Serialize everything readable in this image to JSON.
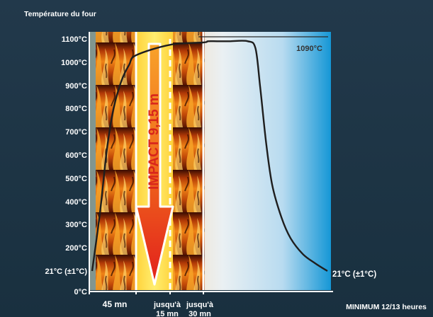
{
  "chart_data": {
    "type": "line",
    "title": "Température du four",
    "ylim": [
      0,
      1100
    ],
    "y_ticks": [
      "1100°C",
      "1000°C",
      "900°C",
      "800°C",
      "700°C",
      "600°C",
      "500°C",
      "400°C",
      "300°C",
      "200°C",
      "21°C (±1°C)",
      "0°C"
    ],
    "y_tick_values": [
      1100,
      1000,
      900,
      800,
      700,
      600,
      500,
      400,
      300,
      200,
      21,
      0
    ],
    "x_labels": [
      {
        "text": "45 mn"
      },
      {
        "text": "jusqu'à 15 mn"
      },
      {
        "text": "jusqu'à 30 mn"
      },
      {
        "text": "MINIMUM 12/13 heures"
      }
    ],
    "series": [
      {
        "points": [
          [
            0,
            21
          ],
          [
            8,
            350
          ],
          [
            15,
            620
          ],
          [
            22,
            800
          ],
          [
            30,
            920
          ],
          [
            38,
            990
          ],
          [
            45,
            1030
          ],
          [
            60,
            1075
          ],
          [
            75,
            1085
          ],
          [
            90,
            1090
          ],
          [
            120,
            1090
          ],
          [
            160,
            1090
          ],
          [
            220,
            1090
          ],
          [
            245,
            1060
          ],
          [
            260,
            900
          ],
          [
            280,
            650
          ],
          [
            300,
            470
          ],
          [
            330,
            330
          ],
          [
            360,
            240
          ],
          [
            400,
            150
          ],
          [
            440,
            80
          ],
          [
            480,
            21
          ]
        ]
      }
    ],
    "annotations": {
      "peak": "1090°C",
      "final": "21°C (±1°C)",
      "impact": "IMPACT 9,15 m"
    }
  }
}
